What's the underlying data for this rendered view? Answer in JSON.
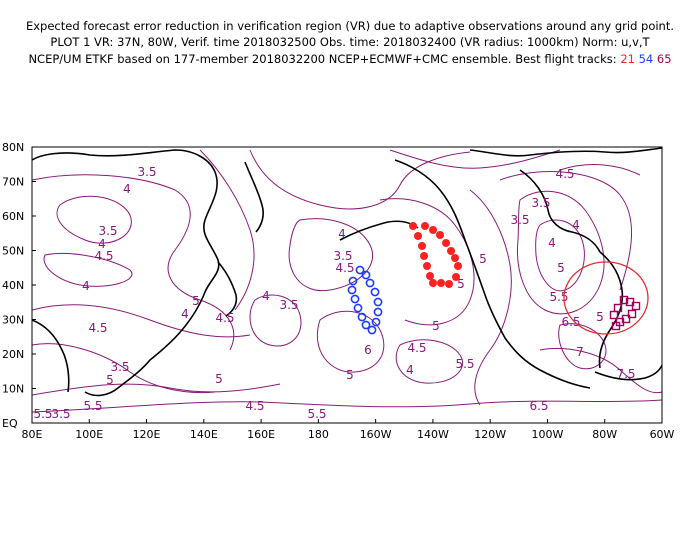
{
  "header": {
    "line1": "Expected forecast error reduction in verification region (VR) due to adaptive observations around any grid point.",
    "line2": "PLOT 1 VR: 37N, 80W, Verif. time 2018032500 Obs. time: 2018032400 (VR radius: 1000km) Norm: u,v,T",
    "line3_prefix": "NCEP/UM ETKF based on 177-member 2018032200 NCEP+ECMWF+CMC ensemble. Best flight tracks: ",
    "track1": "21",
    "track2": "54",
    "track3": "65"
  },
  "colors": {
    "contour": "#8a1a7a",
    "track_21": "#ff2020",
    "track_54": "#1e3cff",
    "track_65": "#a0005a",
    "verification_circle": "#e03030"
  },
  "map": {
    "lat_labels": [
      "EQ",
      "10N",
      "20N",
      "30N",
      "40N",
      "50N",
      "60N",
      "70N",
      "80N"
    ],
    "lon_labels": [
      "80E",
      "100E",
      "120E",
      "140E",
      "160E",
      "180",
      "160W",
      "140W",
      "120W",
      "100W",
      "80W",
      "60W"
    ],
    "contour_labels": [
      "3.5",
      "4",
      "3.5",
      "4",
      "4.5",
      "4",
      "4.5",
      "5",
      "5.5",
      "5.5",
      "5",
      "4.5",
      "4",
      "3.5",
      "4",
      "3.5",
      "4.5",
      "5",
      "6",
      "5",
      "4.5",
      "5.5",
      "5",
      "4",
      "5",
      "4.5",
      "3.5",
      "3.5",
      "4",
      "4",
      "5",
      "5.5",
      "6.5",
      "7",
      "5",
      "7.5",
      "6.5",
      "5.5",
      "4.5",
      "5",
      "4",
      "3.5",
      "3.5"
    ]
  }
}
